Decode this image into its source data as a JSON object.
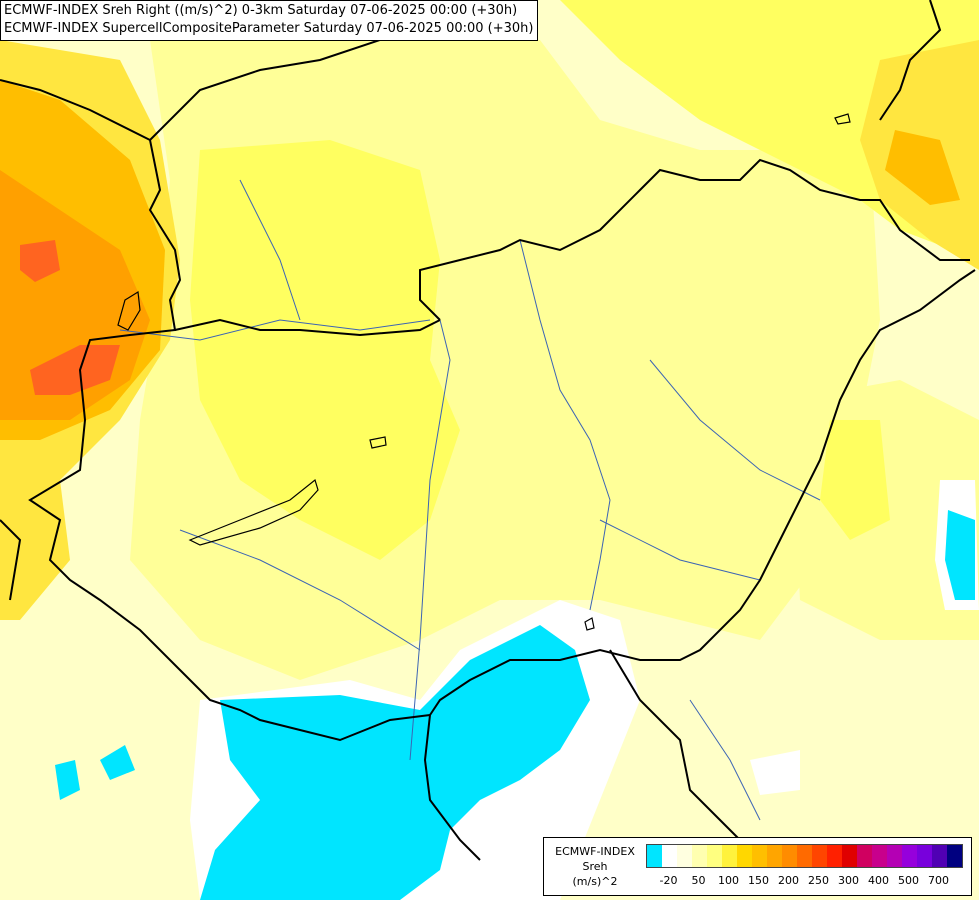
{
  "titles": {
    "line1": "ECMWF-INDEX Sreh Right ((m/s)^2) 0-3km Saturday 07-06-2025 00:00 (+30h)",
    "line2": "ECMWF-INDEX SupercellCompositeParameter Saturday 07-06-2025 00:00 (+30h)"
  },
  "legend": {
    "line1": "ECMWF-INDEX",
    "line2": "Sreh",
    "line3": "(m/s)^2",
    "colors": [
      "#00e5ff",
      "#ffffff",
      "#ffffe0",
      "#ffffb0",
      "#ffff80",
      "#fff23c",
      "#ffd700",
      "#ffbf00",
      "#ffa500",
      "#ff8c00",
      "#ff6a00",
      "#ff4500",
      "#ff2000",
      "#e00000",
      "#d00060",
      "#c8008c",
      "#b400b4",
      "#9600dc",
      "#7800dc",
      "#5000b4",
      "#000080"
    ],
    "ticks": [
      "-20",
      "50",
      "100",
      "150",
      "200",
      "250",
      "300",
      "400",
      "500",
      "700"
    ]
  },
  "map": {
    "fills": {
      "base": "#ffffc8",
      "light_yellow": "#ffff98",
      "yellow": "#ffff60",
      "gold": "#ffe640",
      "amber": "#ffbe00",
      "orange": "#ffa000",
      "red_orange": "#ff6420",
      "cyan": "#00e5ff",
      "white": "#ffffff"
    }
  }
}
